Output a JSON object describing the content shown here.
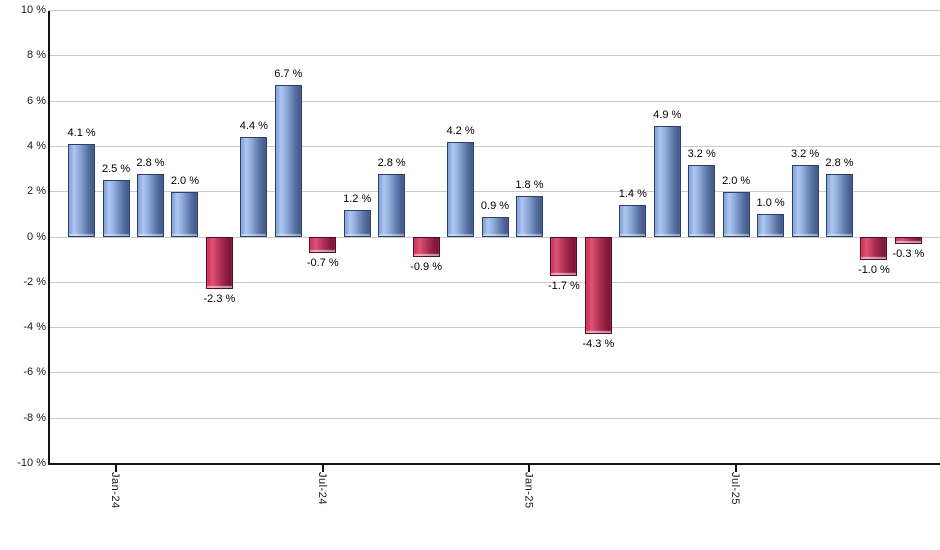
{
  "chart_data": {
    "type": "bar",
    "title": "",
    "values": [
      4.1,
      2.5,
      2.8,
      2.0,
      -2.3,
      4.4,
      6.7,
      -0.7,
      1.2,
      2.8,
      -0.9,
      4.2,
      0.9,
      1.8,
      -1.7,
      -4.3,
      1.4,
      4.9,
      3.2,
      2.0,
      1.0,
      3.2,
      2.8,
      -1.0,
      -0.3
    ],
    "bar_labels": [
      "4.1 %",
      "2.5 %",
      "2.8 %",
      "2.0 %",
      "-2.3 %",
      "4.4 %",
      "6.7 %",
      "-0.7 %",
      "1.2 %",
      "2.8 %",
      "-0.9 %",
      "4.2 %",
      "0.9 %",
      "1.8 %",
      "-1.7 %",
      "-4.3 %",
      "1.4 %",
      "4.9 %",
      "3.2 %",
      "2.0 %",
      "1.0 %",
      "3.2 %",
      "2.8 %",
      "-1.0 %",
      "-0.3 %"
    ],
    "x_axis": {
      "tick_labels": [
        "Jan-24",
        "Jul-24",
        "Jan-25",
        "Jul-25"
      ],
      "tick_bar_indices": [
        1,
        7,
        13,
        19
      ]
    },
    "y_axis": {
      "min": -10,
      "max": 10,
      "step": 2,
      "tick_labels": [
        "10 %",
        "8 %",
        "6 %",
        "4 %",
        "2 %",
        "0 %",
        "-2 %",
        "-4 %",
        "-6 %",
        "-8 %",
        "-10 %"
      ],
      "unit": "%"
    },
    "grid": true,
    "legend": false,
    "colors": {
      "positive_bar_highlight": "#aec7f2",
      "positive_bar_dark": "#3d5384",
      "positive_bar_border": "#2b3f6b",
      "negative_bar_highlight": "#dd5476",
      "negative_bar_dark": "#771233",
      "negative_bar_border": "#570b27",
      "gridline": "#cacaca",
      "axis_line": "#111111",
      "label_text": "#000000",
      "background": "#ffffff"
    }
  }
}
